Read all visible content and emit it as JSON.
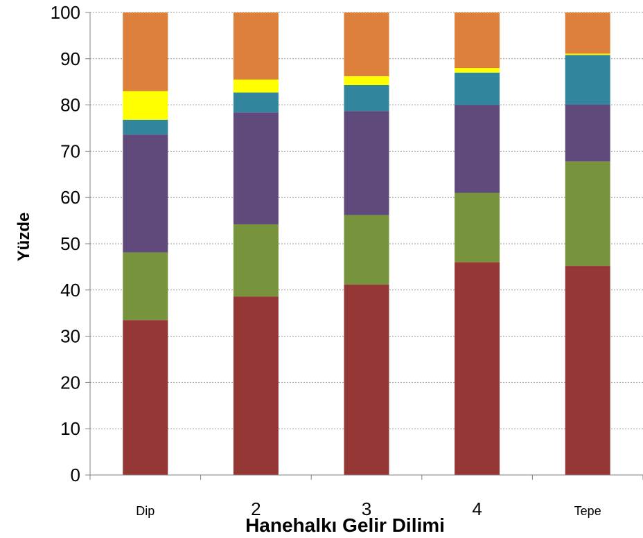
{
  "chart_data": {
    "type": "bar",
    "stacked": true,
    "title": "",
    "xlabel": "Hanehalkı Gelir Dilimi",
    "ylabel": "Yüzde",
    "ylim": [
      0,
      100
    ],
    "yticks": [
      0,
      10,
      20,
      30,
      40,
      50,
      60,
      70,
      80,
      90,
      100
    ],
    "grid": "horizontal dotted",
    "legend": "none",
    "categories": [
      "Dip",
      "2",
      "3",
      "4",
      "Tepe"
    ],
    "series": [
      {
        "color": "#953735",
        "values": [
          33.5,
          38.6,
          41.2,
          46.0,
          45.2
        ]
      },
      {
        "color": "#77933C",
        "values": [
          14.6,
          15.6,
          15.0,
          15.0,
          22.6
        ]
      },
      {
        "color": "#604A7B",
        "values": [
          25.5,
          24.2,
          22.5,
          19.0,
          12.3
        ]
      },
      {
        "color": "#31859C",
        "values": [
          3.2,
          4.3,
          5.6,
          7.0,
          10.7
        ]
      },
      {
        "color": "#FFFF00",
        "values": [
          6.2,
          2.8,
          1.9,
          1.0,
          0.3
        ]
      },
      {
        "color": "#DD803C",
        "values": [
          17.0,
          14.5,
          13.8,
          12.0,
          8.9
        ]
      }
    ]
  }
}
